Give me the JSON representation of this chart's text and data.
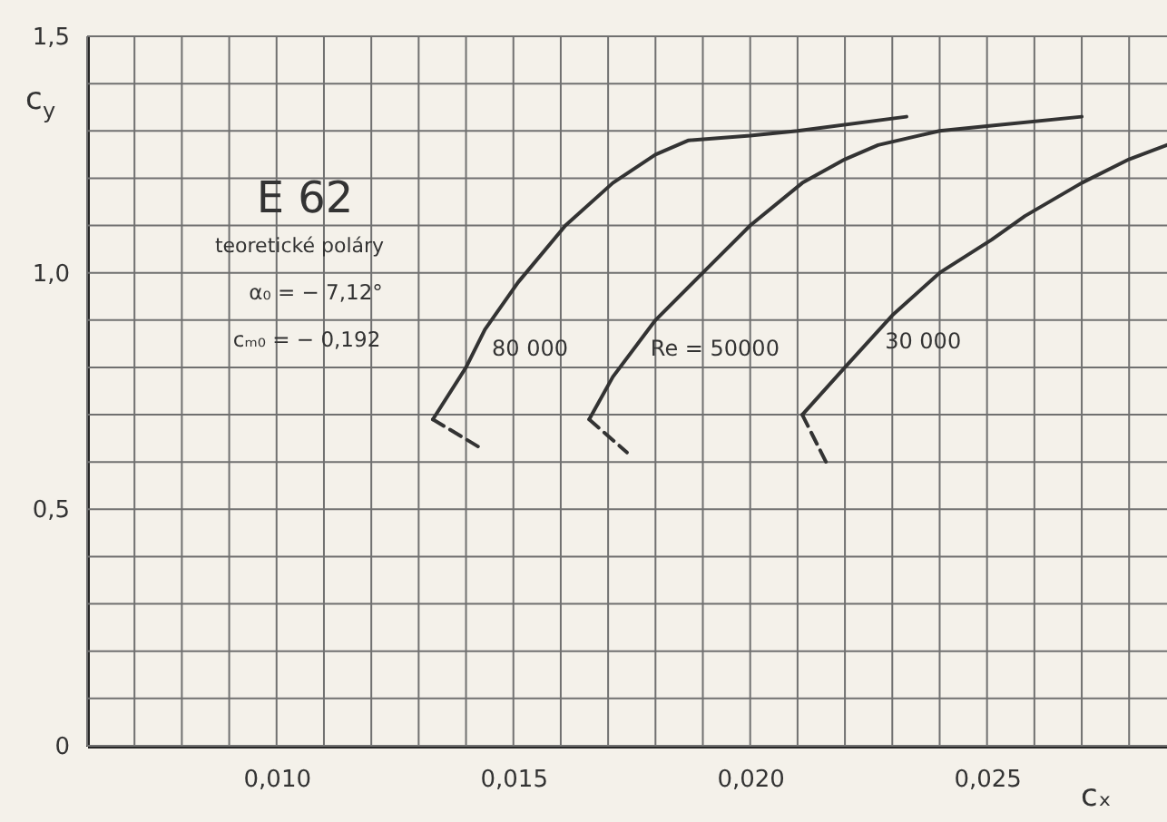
{
  "chart_data": {
    "type": "line",
    "annotations": [
      "E 62",
      "teoretické poláry",
      "α₀ = − 7,12°",
      "cₘ₀ = − 0,192"
    ],
    "xlabel": "cₓ",
    "ylabel": "c$_{y}$",
    "xlim": [
      0.006,
      0.0288
    ],
    "ylim": [
      0,
      1.5
    ],
    "xticks": [
      {
        "value": 0.006,
        "label": null
      },
      {
        "value": 0.007,
        "label": null
      },
      {
        "value": 0.008,
        "label": null
      },
      {
        "value": 0.009,
        "label": null
      },
      {
        "value": 0.01,
        "label": "0,010"
      },
      {
        "value": 0.011,
        "label": null
      },
      {
        "value": 0.012,
        "label": null
      },
      {
        "value": 0.013,
        "label": null
      },
      {
        "value": 0.014,
        "label": null
      },
      {
        "value": 0.015,
        "label": "0,015"
      },
      {
        "value": 0.016,
        "label": null
      },
      {
        "value": 0.017,
        "label": null
      },
      {
        "value": 0.018,
        "label": null
      },
      {
        "value": 0.019,
        "label": null
      },
      {
        "value": 0.02,
        "label": "0,020"
      },
      {
        "value": 0.021,
        "label": null
      },
      {
        "value": 0.022,
        "label": null
      },
      {
        "value": 0.023,
        "label": null
      },
      {
        "value": 0.024,
        "label": null
      },
      {
        "value": 0.025,
        "label": "0,025"
      },
      {
        "value": 0.026,
        "label": null
      },
      {
        "value": 0.027,
        "label": null
      },
      {
        "value": 0.028,
        "label": null
      }
    ],
    "yticks": [
      0,
      {
        "value": 0.1,
        "label": null
      },
      {
        "value": 0.2,
        "label": null
      },
      {
        "value": 0.3,
        "label": null
      },
      {
        "value": 0.4,
        "label": null
      },
      {
        "value": 0.5,
        "label": "0,5"
      },
      {
        "value": 0.6,
        "label": null
      },
      {
        "value": 0.7,
        "label": null
      },
      {
        "value": 0.8,
        "label": null
      },
      {
        "value": 0.9,
        "label": null
      },
      {
        "value": 1.0,
        "label": "1,0"
      },
      {
        "value": 1.1,
        "label": null
      },
      {
        "value": 1.2,
        "label": null
      },
      {
        "value": 1.3,
        "label": null
      },
      {
        "value": 1.4,
        "label": null
      },
      {
        "value": 1.5,
        "label": "1,5"
      }
    ],
    "grid": true,
    "series": [
      {
        "name": "80 000",
        "color": "#333333",
        "x": [
          0.0133,
          0.014,
          0.0144,
          0.0151,
          0.0161,
          0.0171,
          0.018,
          0.0187,
          0.02,
          0.021,
          0.0233
        ],
        "values": [
          0.69,
          0.8,
          0.88,
          0.98,
          1.1,
          1.19,
          1.25,
          1.28,
          1.29,
          1.3,
          1.33
        ]
      },
      {
        "color": "#333333",
        "line_style": "dashed",
        "x": [
          0.0133,
          0.0143
        ],
        "values": [
          0.69,
          0.63
        ]
      },
      {
        "name": "Re = 50000",
        "color": "#333333",
        "x": [
          0.0166,
          0.0171,
          0.018,
          0.019,
          0.02,
          0.0211,
          0.022,
          0.0227,
          0.024,
          0.025,
          0.027
        ],
        "values": [
          0.69,
          0.78,
          0.9,
          1.0,
          1.1,
          1.19,
          1.24,
          1.27,
          1.3,
          1.31,
          1.33
        ]
      },
      {
        "color": "#333333",
        "line_style": "dashed",
        "x": [
          0.0166,
          0.0174
        ],
        "values": [
          0.69,
          0.62
        ]
      },
      {
        "name": "30 000",
        "color": "#333333",
        "x": [
          0.0211,
          0.022,
          0.023,
          0.024,
          0.0251,
          0.0258,
          0.027,
          0.028,
          0.0288
        ],
        "values": [
          0.7,
          0.8,
          0.91,
          1.0,
          1.07,
          1.12,
          1.19,
          1.24,
          1.27
        ]
      },
      {
        "color": "#333333",
        "line_style": "dashed",
        "x": [
          0.0211,
          0.0216
        ],
        "values": [
          0.7,
          0.6
        ]
      }
    ]
  }
}
